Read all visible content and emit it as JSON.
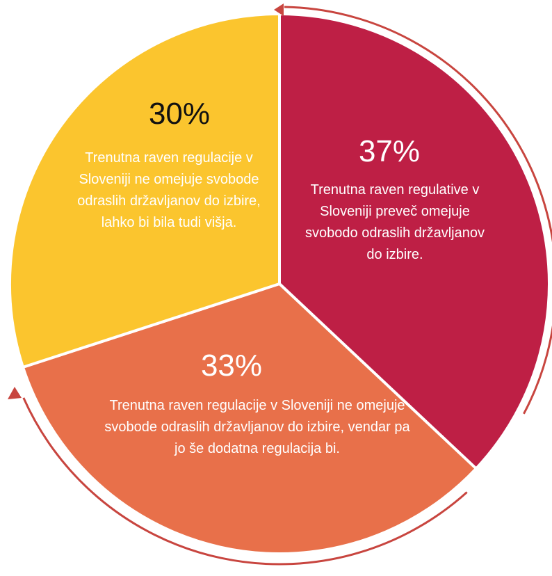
{
  "chart_data": {
    "type": "pie",
    "categories": [
      "Trenutna raven regulative v Sloveniji preveč omejuje svobodo odraslih državljanov do izbire.",
      "Trenutna raven regulacije v Sloveniji ne omejuje svobode odraslih državljanov do izbire, vendar pa jo še dodatna regulacija bi.",
      "Trenutna raven regulacije v Sloveniji ne omejuje svobode odraslih državljanov do izbire, lahko bi bila tudi višja."
    ],
    "values": [
      37,
      33,
      30
    ],
    "value_labels": [
      "37%",
      "33%",
      "30%"
    ],
    "colors": [
      "#be1f45",
      "#e8704a",
      "#fbc52e"
    ]
  }
}
